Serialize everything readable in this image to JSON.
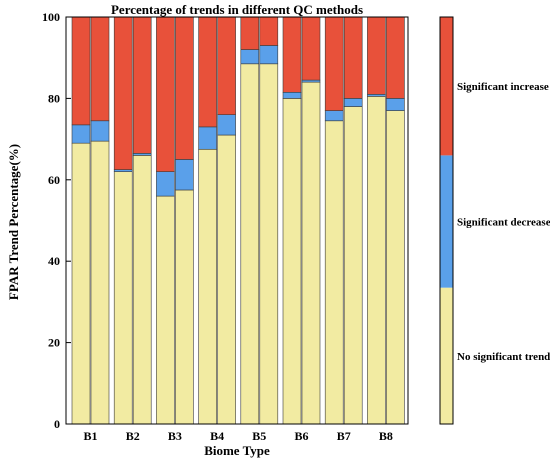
{
  "chart_data": {
    "type": "bar",
    "title": "Percentage of trends in different QC methods",
    "xlabel": "Biome Type",
    "ylabel": "FPAR Trend Percentage(%)",
    "ylim": [
      0,
      100
    ],
    "yticks": [
      0,
      20,
      40,
      60,
      80,
      100
    ],
    "categories": [
      "B1",
      "B2",
      "B3",
      "B4",
      "B5",
      "B6",
      "B7",
      "B8"
    ],
    "bars_per_category": 2,
    "stacking_order": [
      "No significant trend",
      "Significant decrease",
      "Significant increase"
    ],
    "series": [
      {
        "name": "No significant trend",
        "color": "#f2eba2",
        "values": [
          [
            69,
            69.5
          ],
          [
            62,
            66
          ],
          [
            56,
            57.5
          ],
          [
            67.5,
            71
          ],
          [
            88.5,
            88.5
          ],
          [
            80,
            84
          ],
          [
            74.5,
            78
          ],
          [
            80.5,
            77
          ]
        ]
      },
      {
        "name": "Significant decrease",
        "color": "#5aa0ea",
        "values": [
          [
            4.5,
            5
          ],
          [
            0.5,
            0.5
          ],
          [
            6,
            7.5
          ],
          [
            5.5,
            5
          ],
          [
            3.5,
            4.5
          ],
          [
            1.5,
            0.5
          ],
          [
            2.5,
            2
          ],
          [
            0.5,
            3
          ]
        ]
      },
      {
        "name": "Significant increase",
        "color": "#e8513a",
        "values": [
          [
            26.5,
            25.5
          ],
          [
            37.5,
            33.5
          ],
          [
            38,
            35
          ],
          [
            27,
            24
          ],
          [
            8,
            7
          ],
          [
            18.5,
            15.5
          ],
          [
            23,
            20
          ],
          [
            19,
            20
          ]
        ]
      }
    ],
    "colorbar": {
      "segments": [
        {
          "label": "No significant trend",
          "color": "#f2eba2",
          "value": 33.5
        },
        {
          "label": "Significant decrease",
          "color": "#5aa0ea",
          "value": 32.5
        },
        {
          "label": "Significant increase",
          "color": "#e8513a",
          "value": 34
        }
      ]
    },
    "grid": false,
    "legend": "right colorbar"
  }
}
